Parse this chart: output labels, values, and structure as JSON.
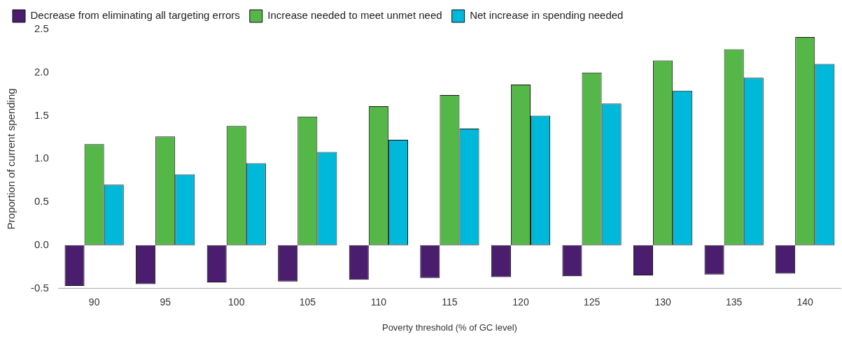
{
  "chart_data": {
    "type": "bar",
    "xlabel": "Poverty threshold (% of GC level)",
    "ylabel": "Proportion of current spending",
    "categories": [
      "90",
      "95",
      "100",
      "105",
      "110",
      "115",
      "120",
      "125",
      "130",
      "135",
      "140"
    ],
    "series": [
      {
        "name": "Decrease from eliminating all targeting errors",
        "color": "#4a1d6e",
        "values": [
          -0.47,
          -0.45,
          -0.43,
          -0.42,
          -0.4,
          -0.38,
          -0.37,
          -0.36,
          -0.35,
          -0.34,
          -0.33
        ]
      },
      {
        "name": "Increase needed to meet unmet need",
        "color": "#55b748",
        "values": [
          1.17,
          1.26,
          1.38,
          1.49,
          1.61,
          1.74,
          1.86,
          2.0,
          2.14,
          2.27,
          2.41
        ]
      },
      {
        "name": "Net increase in spending needed",
        "color": "#00b8d9",
        "values": [
          0.7,
          0.82,
          0.95,
          1.08,
          1.22,
          1.35,
          1.5,
          1.64,
          1.79,
          1.94,
          2.1
        ]
      }
    ],
    "ylim": [
      -0.5,
      2.5
    ],
    "yticks": [
      {
        "value": -0.5,
        "label": "-0.5"
      },
      {
        "value": 0,
        "label": "0.0"
      },
      {
        "value": 0.5,
        "label": "0.5"
      },
      {
        "value": 1,
        "label": "1.0"
      },
      {
        "value": 1.5,
        "label": "1.5"
      },
      {
        "value": 2,
        "label": "2.0"
      },
      {
        "value": 2.5,
        "label": "2.5"
      }
    ],
    "grid": false,
    "legend": "top left"
  }
}
